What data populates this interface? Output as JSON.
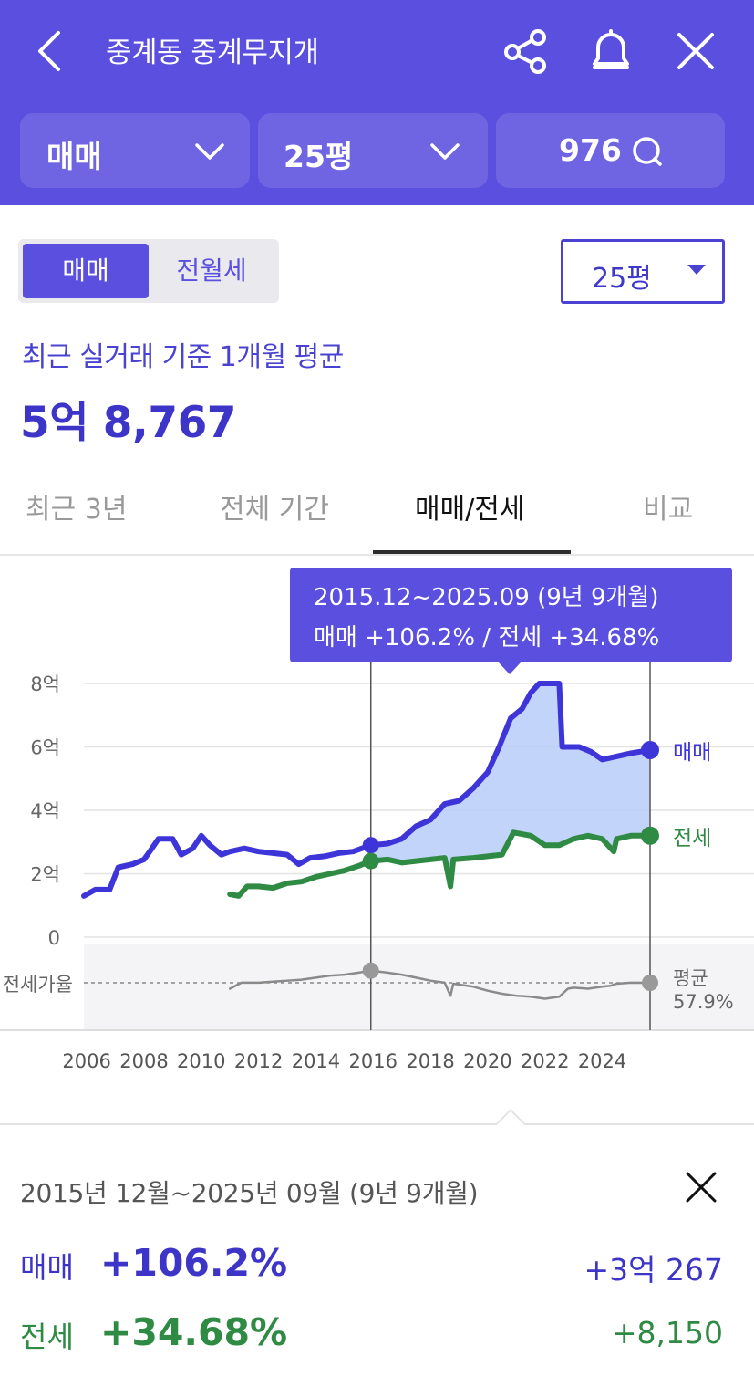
{
  "header": {
    "title": "중계동 중계무지개",
    "filter_type": "매매",
    "filter_size": "25평",
    "comment_count": "976"
  },
  "segment": {
    "active": "매매",
    "inactive": "전월세"
  },
  "size_select": "25평",
  "summary": {
    "subtitle": "최근 실거래 기준 1개월 평균",
    "price": "5억 8,767"
  },
  "tabs": [
    {
      "label": "최근 3년",
      "selected": false
    },
    {
      "label": "전체 기간",
      "selected": false
    },
    {
      "label": "매매/전세",
      "selected": true
    },
    {
      "label": "비교",
      "selected": false
    }
  ],
  "tooltip": {
    "period": "2015.12~2025.09 (9년 9개월)",
    "changes": "매매 +106.2%  /  전세 +34.68%"
  },
  "chart_data": {
    "type": "line",
    "x_unit": "year",
    "y_unit": "억",
    "ylim": [
      0,
      8
    ],
    "y_ticks": [
      "0",
      "2억",
      "4억",
      "6억",
      "8억"
    ],
    "x_ticks": [
      "2006",
      "2008",
      "2010",
      "2012",
      "2014",
      "2016",
      "2018",
      "2020",
      "2022",
      "2024"
    ],
    "grid": true,
    "selection_range": [
      2015.92,
      2025.67
    ],
    "series": [
      {
        "name": "매매",
        "color": "#3d35d8",
        "points": [
          [
            2005.9,
            1.3
          ],
          [
            2006.3,
            1.5
          ],
          [
            2006.8,
            1.5
          ],
          [
            2007.1,
            2.2
          ],
          [
            2007.6,
            2.3
          ],
          [
            2008.0,
            2.45
          ],
          [
            2008.2,
            2.7
          ],
          [
            2008.5,
            3.1
          ],
          [
            2009.0,
            3.1
          ],
          [
            2009.3,
            2.6
          ],
          [
            2009.7,
            2.8
          ],
          [
            2010.0,
            3.2
          ],
          [
            2010.3,
            2.9
          ],
          [
            2010.7,
            2.6
          ],
          [
            2011.0,
            2.7
          ],
          [
            2011.5,
            2.8
          ],
          [
            2012.0,
            2.7
          ],
          [
            2012.5,
            2.65
          ],
          [
            2013.0,
            2.6
          ],
          [
            2013.4,
            2.3
          ],
          [
            2013.8,
            2.5
          ],
          [
            2014.3,
            2.55
          ],
          [
            2014.8,
            2.65
          ],
          [
            2015.3,
            2.7
          ],
          [
            2015.92,
            2.9
          ],
          [
            2016.5,
            2.95
          ],
          [
            2017.0,
            3.1
          ],
          [
            2017.5,
            3.5
          ],
          [
            2018.0,
            3.7
          ],
          [
            2018.5,
            4.2
          ],
          [
            2019.0,
            4.3
          ],
          [
            2019.5,
            4.7
          ],
          [
            2020.0,
            5.2
          ],
          [
            2020.4,
            6.0
          ],
          [
            2020.8,
            6.9
          ],
          [
            2021.2,
            7.2
          ],
          [
            2021.5,
            7.7
          ],
          [
            2021.8,
            8.0
          ],
          [
            2022.5,
            8.0
          ],
          [
            2022.6,
            6.0
          ],
          [
            2023.2,
            6.0
          ],
          [
            2023.6,
            5.85
          ],
          [
            2024.0,
            5.6
          ],
          [
            2024.5,
            5.7
          ],
          [
            2025.0,
            5.8
          ],
          [
            2025.67,
            5.9
          ]
        ]
      },
      {
        "name": "전세",
        "color": "#2f8a44",
        "points": [
          [
            2011.0,
            1.35
          ],
          [
            2011.3,
            1.3
          ],
          [
            2011.6,
            1.6
          ],
          [
            2012.0,
            1.6
          ],
          [
            2012.5,
            1.55
          ],
          [
            2013.0,
            1.7
          ],
          [
            2013.5,
            1.75
          ],
          [
            2014.0,
            1.9
          ],
          [
            2014.5,
            2.0
          ],
          [
            2015.0,
            2.1
          ],
          [
            2015.5,
            2.25
          ],
          [
            2015.92,
            2.4
          ],
          [
            2016.5,
            2.45
          ],
          [
            2017.0,
            2.35
          ],
          [
            2017.5,
            2.4
          ],
          [
            2018.0,
            2.45
          ],
          [
            2018.5,
            2.5
          ],
          [
            2018.7,
            1.6
          ],
          [
            2018.8,
            2.45
          ],
          [
            2019.5,
            2.5
          ],
          [
            2020.0,
            2.55
          ],
          [
            2020.5,
            2.6
          ],
          [
            2020.9,
            3.3
          ],
          [
            2021.5,
            3.2
          ],
          [
            2022.0,
            2.9
          ],
          [
            2022.5,
            2.9
          ],
          [
            2023.0,
            3.1
          ],
          [
            2023.5,
            3.2
          ],
          [
            2024.0,
            3.1
          ],
          [
            2024.4,
            2.7
          ],
          [
            2024.5,
            3.1
          ],
          [
            2025.0,
            3.2
          ],
          [
            2025.67,
            3.2
          ]
        ]
      },
      {
        "name": "전세가율",
        "color": "#8a8a8a",
        "reference_label": "평균 57.9%",
        "points": [
          [
            2011.0,
            52
          ],
          [
            2011.4,
            58
          ],
          [
            2012.0,
            58
          ],
          [
            2012.5,
            59
          ],
          [
            2013.0,
            60
          ],
          [
            2013.5,
            61
          ],
          [
            2014.0,
            63
          ],
          [
            2014.5,
            65
          ],
          [
            2015.0,
            66
          ],
          [
            2015.5,
            68
          ],
          [
            2015.92,
            70
          ],
          [
            2016.5,
            68
          ],
          [
            2017.0,
            66
          ],
          [
            2017.5,
            63
          ],
          [
            2018.0,
            60
          ],
          [
            2018.5,
            58
          ],
          [
            2018.7,
            45
          ],
          [
            2018.8,
            57
          ],
          [
            2019.5,
            54
          ],
          [
            2020.0,
            50
          ],
          [
            2020.5,
            47
          ],
          [
            2021.0,
            45
          ],
          [
            2021.5,
            44
          ],
          [
            2022.0,
            42
          ],
          [
            2022.5,
            44
          ],
          [
            2022.8,
            52
          ],
          [
            2023.0,
            53
          ],
          [
            2023.5,
            52
          ],
          [
            2024.0,
            54
          ],
          [
            2024.3,
            55
          ],
          [
            2024.5,
            57
          ],
          [
            2025.0,
            58
          ],
          [
            2025.67,
            57.9
          ]
        ]
      }
    ],
    "labels": {
      "sale": "매매",
      "jeonse": "전세",
      "ratio": "전세가율",
      "avg_top": "평균",
      "avg_bottom": "57.9%"
    }
  },
  "detail": {
    "period": "2015년 12월~2025년 09월 (9년 9개월)",
    "sale_label": "매매",
    "sale_pct": "+106.2%",
    "sale_amount": "+3억 267",
    "rent_label": "전세",
    "rent_pct": "+34.68%",
    "rent_amount": "+8,150"
  }
}
